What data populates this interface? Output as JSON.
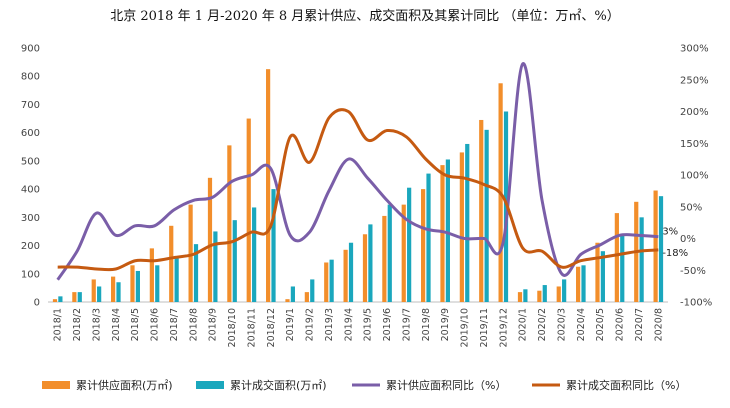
{
  "chart_data": {
    "type": "bar",
    "title": "北京 2018 年 1 月-2020 年 8 月累计供应、成交面积及其累计同比 （单位：万㎡、%）",
    "categories": [
      "2018/1",
      "2018/2",
      "2018/3",
      "2018/4",
      "2018/5",
      "2018/6",
      "2018/7",
      "2018/8",
      "2018/9",
      "2018/10",
      "2018/11",
      "2018/12",
      "2019/1",
      "2019/2",
      "2019/3",
      "2019/4",
      "2019/5",
      "2019/6",
      "2019/7",
      "2019/8",
      "2019/9",
      "2019/10",
      "2019/11",
      "2019/12",
      "2020/1",
      "2020/2",
      "2020/3",
      "2020/4",
      "2020/5",
      "2020/6",
      "2020/7",
      "2020/8"
    ],
    "y_left": {
      "ticks": [
        "0",
        "100",
        "200",
        "300",
        "400",
        "500",
        "600",
        "700",
        "800",
        "900"
      ],
      "lim": [
        0,
        900
      ]
    },
    "y_right": {
      "ticks": [
        "-100%",
        "-50%",
        "0%",
        "50%",
        "100%",
        "150%",
        "200%",
        "250%",
        "300%"
      ],
      "lim": [
        -100,
        300
      ]
    },
    "series": [
      {
        "name": "累计供应面积(万㎡)",
        "kind": "bar",
        "axis": "left",
        "color": "#f28e2b",
        "values": [
          10,
          35,
          80,
          90,
          130,
          190,
          270,
          345,
          440,
          555,
          650,
          825,
          10,
          35,
          140,
          185,
          240,
          305,
          345,
          400,
          485,
          530,
          645,
          775,
          35,
          40,
          55,
          125,
          210,
          315,
          355,
          395
        ]
      },
      {
        "name": "累计成交面积(万㎡)",
        "kind": "bar",
        "axis": "left",
        "color": "#1aa7bd",
        "values": [
          20,
          35,
          55,
          70,
          110,
          130,
          155,
          205,
          250,
          290,
          335,
          400,
          55,
          80,
          150,
          210,
          275,
          345,
          405,
          455,
          505,
          560,
          610,
          675,
          45,
          60,
          80,
          130,
          180,
          235,
          300,
          375
        ]
      },
      {
        "name": "累计供应面积同比（%）",
        "kind": "line",
        "axis": "right",
        "color": "#7a5ea8",
        "values": [
          -65,
          -20,
          40,
          5,
          20,
          20,
          45,
          60,
          65,
          90,
          100,
          110,
          5,
          10,
          75,
          125,
          95,
          60,
          30,
          15,
          10,
          0,
          0,
          -5,
          275,
          60,
          -55,
          -25,
          -10,
          5,
          5,
          3
        ]
      },
      {
        "name": "累计成交面积同比（%）",
        "kind": "line",
        "axis": "right",
        "color": "#c55a11",
        "values": [
          -45,
          -45,
          -48,
          -48,
          -35,
          -35,
          -30,
          -25,
          -10,
          -5,
          10,
          20,
          160,
          120,
          190,
          200,
          155,
          170,
          160,
          125,
          100,
          95,
          85,
          65,
          -15,
          -20,
          -45,
          -35,
          -30,
          -25,
          -20,
          -18
        ]
      }
    ],
    "annotations": [
      {
        "text": "3%",
        "series": 2,
        "index": 31
      },
      {
        "text": "-18%",
        "series": 3,
        "index": 31
      }
    ],
    "grid": false,
    "legend": "bottom"
  }
}
